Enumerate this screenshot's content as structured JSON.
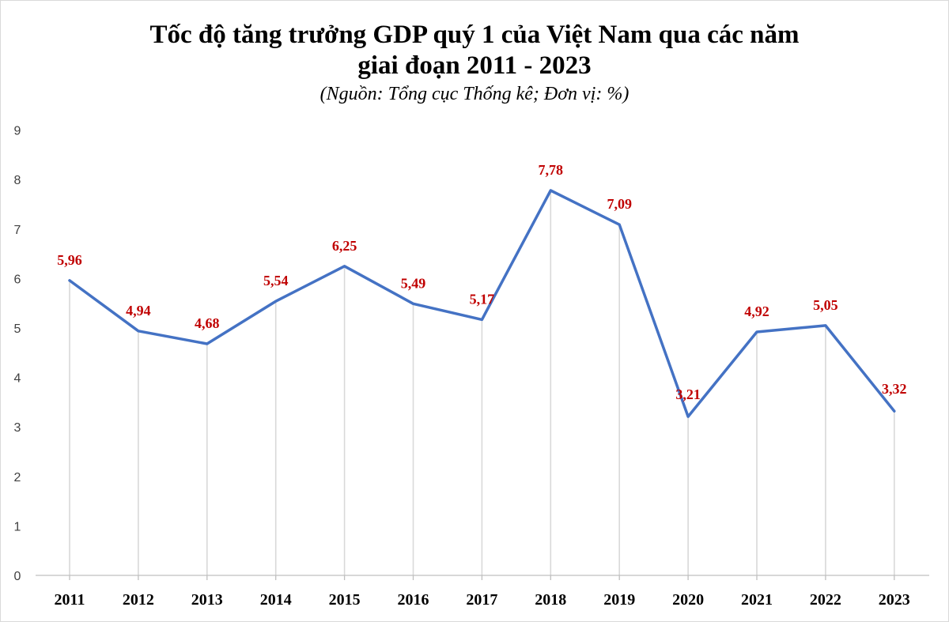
{
  "chart_data": {
    "type": "line",
    "title_line1": "Tốc độ tăng trưởng GDP quý 1 của Việt Nam qua các năm",
    "title_line2": "giai đoạn 2011 - 2023",
    "subtitle": "(Nguồn: Tổng cục Thống kê; Đơn vị: %)",
    "categories": [
      "2011",
      "2012",
      "2013",
      "2014",
      "2015",
      "2016",
      "2017",
      "2018",
      "2019",
      "2020",
      "2021",
      "2022",
      "2023"
    ],
    "series": [
      {
        "name": "Tốc độ tăng trưởng GDP quý 1",
        "values": [
          5.96,
          4.94,
          4.68,
          5.54,
          6.25,
          5.49,
          5.17,
          7.78,
          7.09,
          3.21,
          4.92,
          5.05,
          3.32
        ],
        "labels": [
          "5,96",
          "4,94",
          "4,68",
          "5,54",
          "6,25",
          "5,49",
          "5,17",
          "7,78",
          "7,09",
          "3,21",
          "4,92",
          "5,05",
          "3,32"
        ]
      }
    ],
    "yticks": [
      0,
      1,
      2,
      3,
      4,
      5,
      6,
      7,
      8,
      9
    ],
    "ylim": [
      0,
      9
    ],
    "xlabel": "",
    "ylabel": "",
    "vertical_drop_lines": true,
    "line_color": "#4472c4",
    "label_color": "#c00000",
    "drop_line_color": "#d9d9d9",
    "axis_color": "#bfbfbf"
  }
}
